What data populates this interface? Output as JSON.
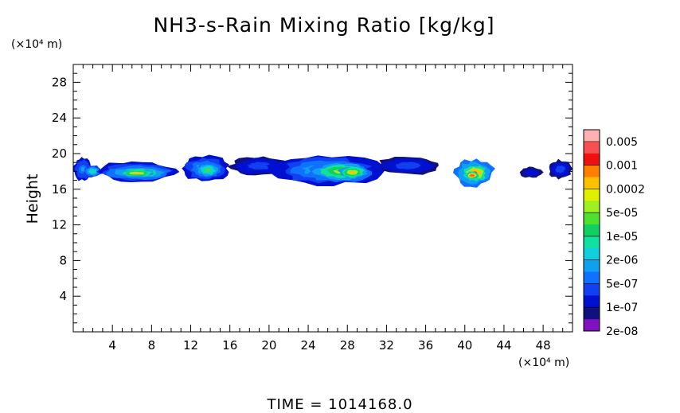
{
  "chart_data": {
    "type": "heatmap",
    "title": "NH3-s-Rain Mixing Ratio [kg/kg]",
    "xlabel": "",
    "ylabel": "Height",
    "x_unit_label": "(×10⁴ m)",
    "y_unit_label": "(×10⁴ m)",
    "xlim": [
      0,
      51
    ],
    "ylim": [
      0,
      30
    ],
    "x_ticks": [
      4,
      8,
      12,
      16,
      20,
      24,
      28,
      32,
      36,
      40,
      44,
      48
    ],
    "y_ticks": [
      4,
      8,
      12,
      16,
      20,
      24,
      28
    ],
    "footer": "TIME = 1014168.0",
    "colorbar": {
      "labels": [
        "0.005",
        "0.001",
        "0.0002",
        "5e-05",
        "1e-05",
        "2e-06",
        "5e-07",
        "1e-07",
        "2e-08"
      ],
      "colors": [
        "#ffb0b0",
        "#f85050",
        "#f01010",
        "#ff8000",
        "#ffc000",
        "#e0f000",
        "#a0f020",
        "#50e030",
        "#10d060",
        "#10e0a0",
        "#10d0e0",
        "#10a0f0",
        "#1070ff",
        "#1040f0",
        "#0010d0",
        "#101080",
        "#8010c0"
      ]
    },
    "blobs": [
      {
        "x": [
          0.0,
          2.0
        ],
        "y": [
          16.9,
          19.6
        ],
        "level": 0.3
      },
      {
        "x": [
          1.0,
          3.0
        ],
        "y": [
          17.3,
          18.7
        ],
        "level": 0.45
      },
      {
        "x": [
          2.5,
          10.5
        ],
        "y": [
          16.7,
          19.2
        ],
        "level": 0.35
      },
      {
        "x": [
          3.5,
          10.0
        ],
        "y": [
          17.1,
          18.6
        ],
        "level": 0.6
      },
      {
        "x": [
          4.5,
          8.5
        ],
        "y": [
          17.4,
          18.2
        ],
        "level": 0.75
      },
      {
        "x": [
          11.0,
          16.0
        ],
        "y": [
          16.9,
          19.8
        ],
        "level": 0.35
      },
      {
        "x": [
          12.5,
          15.0
        ],
        "y": [
          17.3,
          19.0
        ],
        "level": 0.55
      },
      {
        "x": [
          16.0,
          22.0
        ],
        "y": [
          17.5,
          19.7
        ],
        "level": 0.2
      },
      {
        "x": [
          20.0,
          31.5
        ],
        "y": [
          16.4,
          19.9
        ],
        "level": 0.35
      },
      {
        "x": [
          24.0,
          30.5
        ],
        "y": [
          16.8,
          19.2
        ],
        "level": 0.6
      },
      {
        "x": [
          27.0,
          30.0
        ],
        "y": [
          17.2,
          18.6
        ],
        "level": 0.75
      },
      {
        "x": [
          31.0,
          37.5
        ],
        "y": [
          17.6,
          19.7
        ],
        "level": 0.2
      },
      {
        "x": [
          38.8,
          43.0
        ],
        "y": [
          16.3,
          19.4
        ],
        "level": 0.55
      },
      {
        "x": [
          39.5,
          42.5
        ],
        "y": [
          16.7,
          18.9
        ],
        "level": 0.85
      },
      {
        "x": [
          40.0,
          41.5
        ],
        "y": [
          17.1,
          18.0
        ],
        "level": 0.95
      },
      {
        "x": [
          45.5,
          48.0
        ],
        "y": [
          17.3,
          18.5
        ],
        "level": 0.15
      },
      {
        "x": [
          48.5,
          51.0
        ],
        "y": [
          17.2,
          19.3
        ],
        "level": 0.2
      }
    ]
  }
}
